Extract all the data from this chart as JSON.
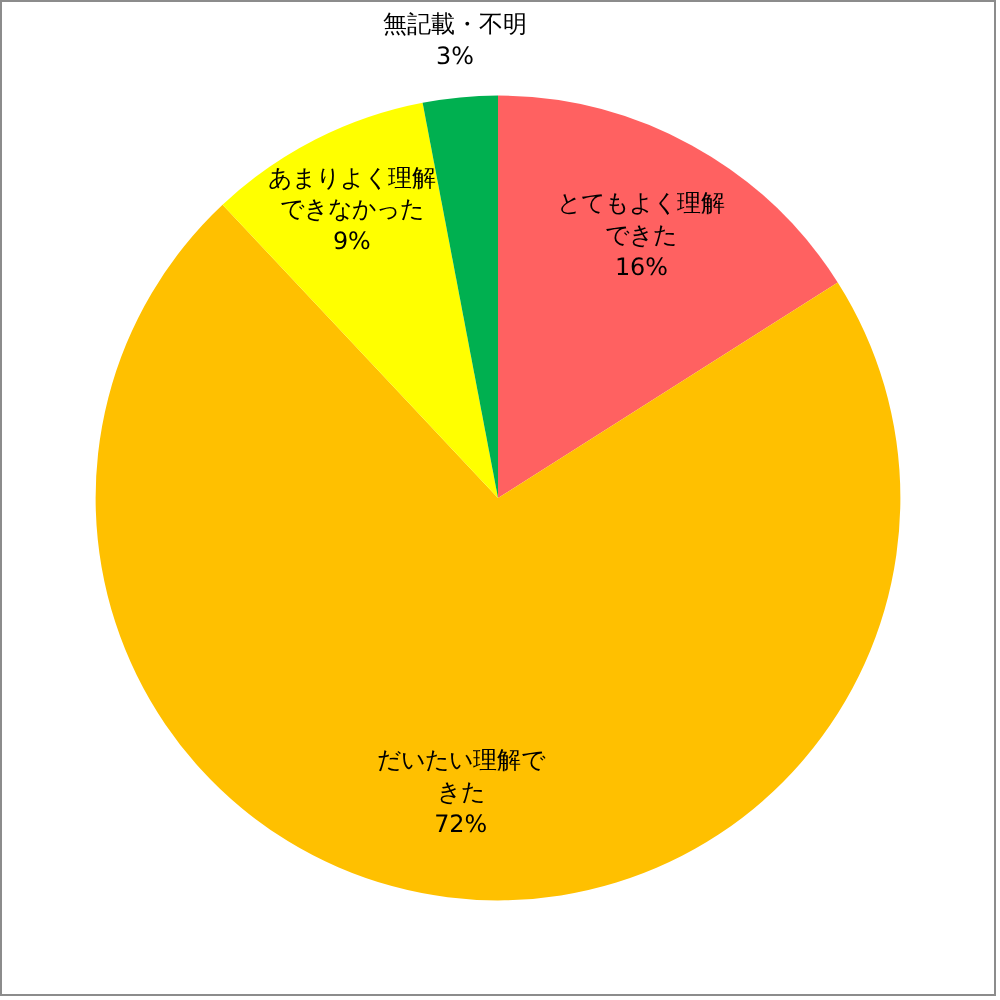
{
  "chart_data": {
    "type": "pie",
    "categories": [
      "とてもよく理解できた",
      "だいたい理解できた",
      "あまりよく理解できなかった",
      "無記載・不明"
    ],
    "values": [
      16,
      72,
      9,
      3
    ],
    "colors": [
      "#ff6161",
      "#ffc000",
      "#ffff00",
      "#00b050"
    ],
    "value_labels": [
      "16%",
      "72%",
      "9%",
      "3%"
    ],
    "legend": false
  }
}
